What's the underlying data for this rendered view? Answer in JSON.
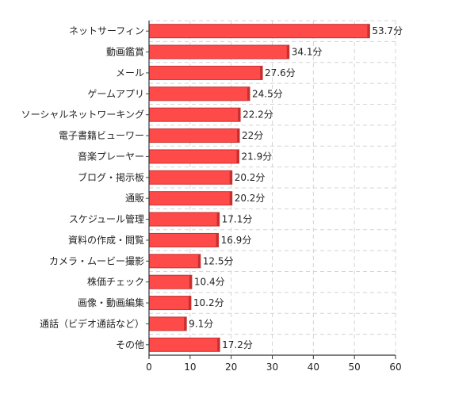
{
  "chart_data": {
    "type": "bar",
    "orientation": "horizontal",
    "categories": [
      "ネットサーフィン",
      "動画鑑賞",
      "メール",
      "ゲームアプリ",
      "ソーシャルネットワーキング",
      "電子書籍ビューワー",
      "音楽プレーヤー",
      "ブログ・掲示板",
      "通販",
      "スケジュール管理",
      "資料の作成・閲覧",
      "カメラ・ムービー撮影",
      "株価チェック",
      "画像・動画編集",
      "通話（ビデオ通話など）",
      "その他"
    ],
    "values": [
      53.7,
      34.1,
      27.6,
      24.5,
      22.2,
      22,
      21.9,
      20.2,
      20.2,
      17.1,
      16.9,
      12.5,
      10.4,
      10.2,
      9.1,
      17.2
    ],
    "value_labels": [
      "53.7分",
      "34.1分",
      "27.6分",
      "24.5分",
      "22.2分",
      "22分",
      "21.9分",
      "20.2分",
      "20.2分",
      "17.1分",
      "16.9分",
      "12.5分",
      "10.4分",
      "10.2分",
      "9.1分",
      "17.2分"
    ],
    "xlim": [
      0,
      60
    ],
    "xticks": [
      "0",
      "10",
      "20",
      "30",
      "40",
      "50",
      "60"
    ],
    "grid": true,
    "bar_color": "#ff4a4a",
    "bar_edge_color": "#c8302f",
    "title": "",
    "xlabel": "",
    "ylabel": ""
  }
}
